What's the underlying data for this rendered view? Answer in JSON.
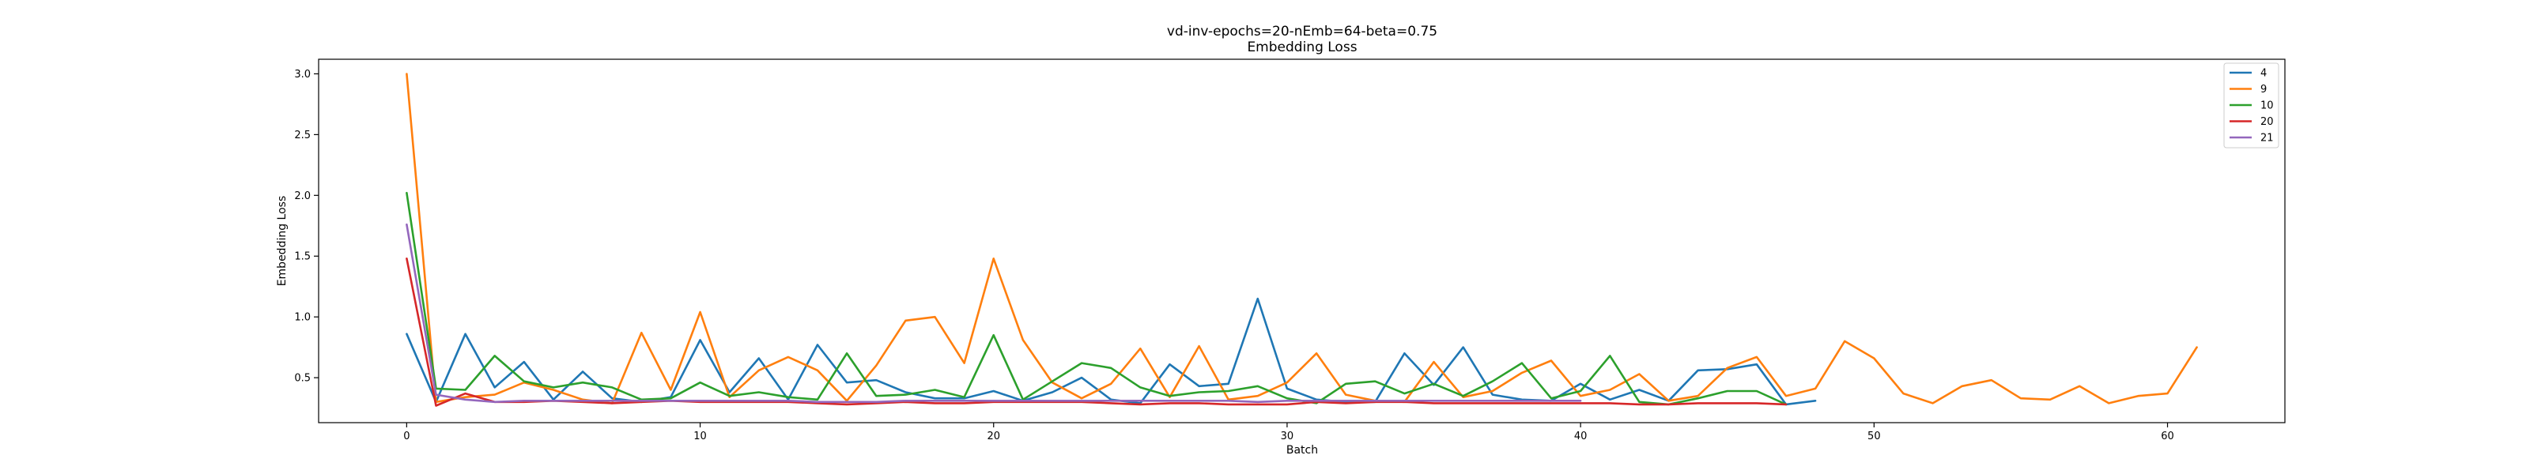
{
  "chart_data": {
    "type": "line",
    "title": "vd-inv-epochs=20-nEmb=64-beta=0.75",
    "subtitle": "Embedding Loss",
    "xlabel": "Batch",
    "ylabel": "Embedding Loss",
    "xlim": [
      -3,
      64
    ],
    "ylim": [
      0.13,
      3.12
    ],
    "xticks": [
      0,
      10,
      20,
      30,
      40,
      50,
      60
    ],
    "yticks": [
      0.5,
      1.0,
      1.5,
      2.0,
      2.5,
      3.0
    ],
    "xtick_labels": [
      "0",
      "10",
      "20",
      "30",
      "40",
      "50",
      "60"
    ],
    "ytick_labels": [
      "0.5",
      "1.0",
      "1.5",
      "2.0",
      "2.5",
      "3.0"
    ],
    "grid": false,
    "legend_position": "top-right",
    "series": [
      {
        "name": "4",
        "color": "#1f77b4",
        "x": [
          0,
          1,
          2,
          3,
          4,
          5,
          6,
          7,
          8,
          9,
          10,
          11,
          12,
          13,
          14,
          15,
          16,
          17,
          18,
          19,
          20,
          21,
          22,
          23,
          24,
          25,
          26,
          27,
          28,
          29,
          30,
          31,
          32,
          33,
          34,
          35,
          36,
          37,
          38,
          39,
          40,
          41,
          42,
          43,
          44,
          45,
          46,
          47,
          48
        ],
        "y": [
          0.86,
          0.3,
          0.86,
          0.42,
          0.63,
          0.32,
          0.55,
          0.33,
          0.3,
          0.34,
          0.81,
          0.38,
          0.66,
          0.32,
          0.77,
          0.46,
          0.48,
          0.38,
          0.33,
          0.33,
          0.39,
          0.31,
          0.38,
          0.5,
          0.32,
          0.29,
          0.61,
          0.43,
          0.45,
          1.15,
          0.41,
          0.32,
          0.3,
          0.3,
          0.7,
          0.44,
          0.75,
          0.36,
          0.32,
          0.31,
          0.45,
          0.32,
          0.4,
          0.31,
          0.56,
          0.57,
          0.61,
          0.28,
          0.31
        ]
      },
      {
        "name": "9",
        "color": "#ff7f0e",
        "x": [
          0,
          1,
          2,
          3,
          4,
          5,
          6,
          7,
          8,
          9,
          10,
          11,
          12,
          13,
          14,
          15,
          16,
          17,
          18,
          19,
          20,
          21,
          22,
          23,
          24,
          25,
          26,
          27,
          28,
          29,
          30,
          31,
          32,
          33,
          34,
          35,
          36,
          37,
          38,
          39,
          40,
          41,
          42,
          43,
          44,
          45,
          46,
          47,
          48,
          49,
          50,
          51,
          52,
          53,
          54,
          55,
          56,
          57,
          58,
          59,
          60,
          61
        ],
        "y": [
          3.0,
          0.3,
          0.34,
          0.36,
          0.46,
          0.4,
          0.32,
          0.29,
          0.87,
          0.4,
          1.04,
          0.34,
          0.56,
          0.67,
          0.56,
          0.31,
          0.6,
          0.97,
          1.0,
          0.62,
          1.48,
          0.81,
          0.46,
          0.33,
          0.45,
          0.74,
          0.34,
          0.76,
          0.32,
          0.35,
          0.46,
          0.7,
          0.36,
          0.31,
          0.3,
          0.63,
          0.34,
          0.39,
          0.54,
          0.64,
          0.35,
          0.4,
          0.53,
          0.31,
          0.35,
          0.58,
          0.67,
          0.35,
          0.41,
          0.8,
          0.66,
          0.37,
          0.29,
          0.43,
          0.48,
          0.33,
          0.32,
          0.43,
          0.29,
          0.35,
          0.37,
          0.75
        ]
      },
      {
        "name": "10",
        "color": "#2ca02c",
        "x": [
          0,
          1,
          2,
          3,
          4,
          5,
          6,
          7,
          8,
          9,
          10,
          11,
          12,
          13,
          14,
          15,
          16,
          17,
          18,
          19,
          20,
          21,
          22,
          23,
          24,
          25,
          26,
          27,
          28,
          29,
          30,
          31,
          32,
          33,
          34,
          35,
          36,
          37,
          38,
          39,
          40,
          41,
          42,
          43,
          44,
          45,
          46,
          47
        ],
        "y": [
          2.02,
          0.41,
          0.4,
          0.68,
          0.47,
          0.42,
          0.46,
          0.42,
          0.32,
          0.33,
          0.46,
          0.35,
          0.38,
          0.34,
          0.32,
          0.7,
          0.35,
          0.36,
          0.4,
          0.34,
          0.85,
          0.32,
          0.47,
          0.62,
          0.58,
          0.42,
          0.35,
          0.38,
          0.39,
          0.43,
          0.33,
          0.29,
          0.45,
          0.47,
          0.37,
          0.45,
          0.35,
          0.47,
          0.62,
          0.33,
          0.39,
          0.68,
          0.3,
          0.28,
          0.33,
          0.39,
          0.39,
          0.28
        ]
      },
      {
        "name": "20",
        "color": "#d62728",
        "x": [
          0,
          1,
          2,
          3,
          4,
          5,
          6,
          7,
          8,
          9,
          10,
          11,
          12,
          13,
          14,
          15,
          16,
          17,
          18,
          19,
          20,
          21,
          22,
          23,
          24,
          25,
          26,
          27,
          28,
          29,
          30,
          31,
          32,
          33,
          34,
          35,
          36,
          37,
          38,
          39,
          40,
          41,
          42,
          43,
          44,
          45,
          46,
          47
        ],
        "y": [
          1.48,
          0.27,
          0.37,
          0.3,
          0.3,
          0.31,
          0.3,
          0.29,
          0.3,
          0.31,
          0.3,
          0.3,
          0.3,
          0.3,
          0.29,
          0.28,
          0.29,
          0.3,
          0.29,
          0.29,
          0.3,
          0.3,
          0.3,
          0.3,
          0.29,
          0.28,
          0.29,
          0.29,
          0.28,
          0.28,
          0.28,
          0.3,
          0.29,
          0.3,
          0.3,
          0.29,
          0.29,
          0.29,
          0.29,
          0.29,
          0.29,
          0.29,
          0.28,
          0.28,
          0.29,
          0.29,
          0.29,
          0.28
        ]
      },
      {
        "name": "21",
        "color": "#9467bd",
        "x": [
          0,
          1,
          2,
          3,
          4,
          5,
          6,
          7,
          8,
          9,
          10,
          11,
          12,
          13,
          14,
          15,
          16,
          17,
          18,
          19,
          20,
          21,
          22,
          23,
          24,
          25,
          26,
          27,
          28,
          29,
          30,
          31,
          32,
          33,
          34,
          35,
          36,
          37,
          38,
          39,
          40
        ],
        "y": [
          1.76,
          0.36,
          0.32,
          0.3,
          0.31,
          0.31,
          0.31,
          0.31,
          0.31,
          0.31,
          0.31,
          0.31,
          0.31,
          0.31,
          0.3,
          0.3,
          0.3,
          0.31,
          0.31,
          0.31,
          0.31,
          0.31,
          0.31,
          0.31,
          0.31,
          0.31,
          0.31,
          0.31,
          0.31,
          0.3,
          0.31,
          0.31,
          0.31,
          0.31,
          0.31,
          0.31,
          0.31,
          0.31,
          0.31,
          0.31,
          0.31
        ]
      }
    ]
  }
}
